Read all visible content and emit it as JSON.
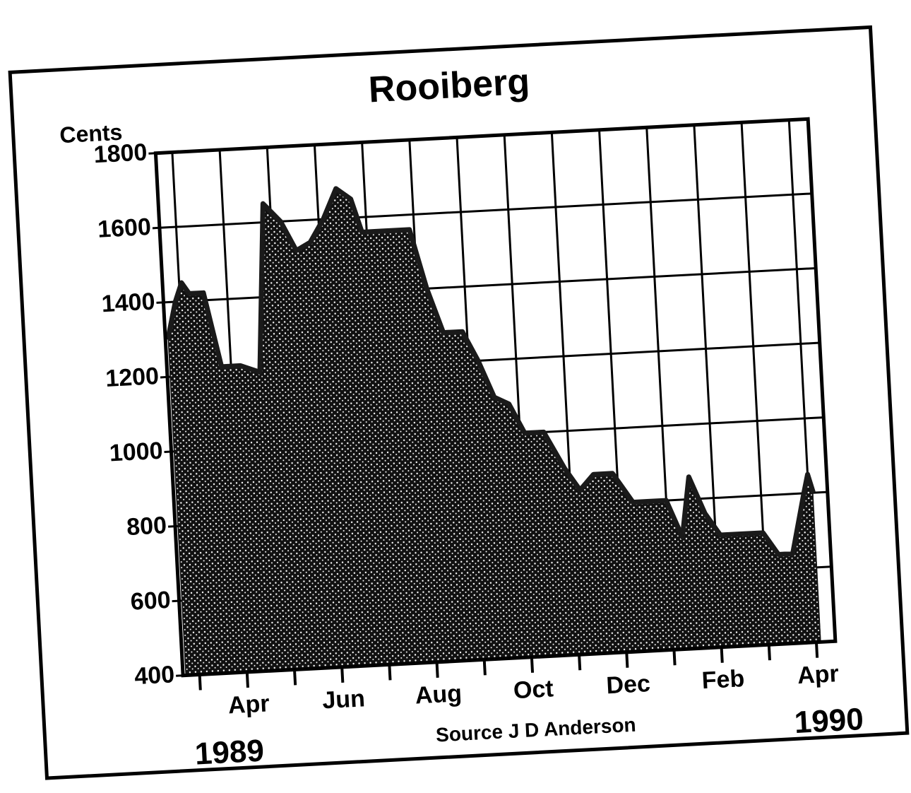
{
  "chart_data": {
    "type": "area",
    "title": "Rooiberg",
    "y_label": "Cents",
    "source": "Source J D Anderson",
    "annotations": [
      "1989",
      "1990"
    ],
    "x": [
      -0.3,
      -0.1,
      0.05,
      0.2,
      0.5,
      0.8,
      1.2,
      1.6,
      1.85,
      2.2,
      2.5,
      2.8,
      3.1,
      3.4,
      3.7,
      3.9,
      4.3,
      4.9,
      5.2,
      5.5,
      5.9,
      6.2,
      6.5,
      6.8,
      7.1,
      7.5,
      7.9,
      8.2,
      8.5,
      8.9,
      9.3,
      9.6,
      10.0,
      10.3,
      10.5,
      10.8,
      11.1,
      11.6,
      12.0,
      12.3,
      12.6,
      12.9,
      13.0,
      13.1
    ],
    "values": [
      1300,
      1400,
      1450,
      1420,
      1420,
      1220,
      1220,
      1200,
      1650,
      1600,
      1520,
      1540,
      1600,
      1680,
      1650,
      1560,
      1560,
      1560,
      1400,
      1280,
      1280,
      1200,
      1100,
      1080,
      1000,
      1000,
      900,
      840,
      880,
      880,
      800,
      800,
      800,
      700,
      860,
      760,
      700,
      700,
      700,
      640,
      640,
      800,
      850,
      800
    ],
    "color": "#1a1a1a",
    "xlim": [
      -0.35,
      13.4
    ],
    "xticks": [
      {
        "value": 1,
        "label": "Apr"
      },
      {
        "value": 3,
        "label": "Jun"
      },
      {
        "value": 5,
        "label": "Aug"
      },
      {
        "value": 7,
        "label": "Oct"
      },
      {
        "value": 9,
        "label": "Dec"
      },
      {
        "value": 11,
        "label": "Feb"
      },
      {
        "value": 13,
        "label": "Apr"
      }
    ],
    "x_minor_ticks": [
      0,
      2,
      4,
      6,
      8,
      10,
      12
    ],
    "ylim": [
      400,
      1800
    ],
    "yticks": [
      400,
      600,
      800,
      1000,
      1200,
      1400,
      1600,
      1800
    ],
    "grid": true
  }
}
